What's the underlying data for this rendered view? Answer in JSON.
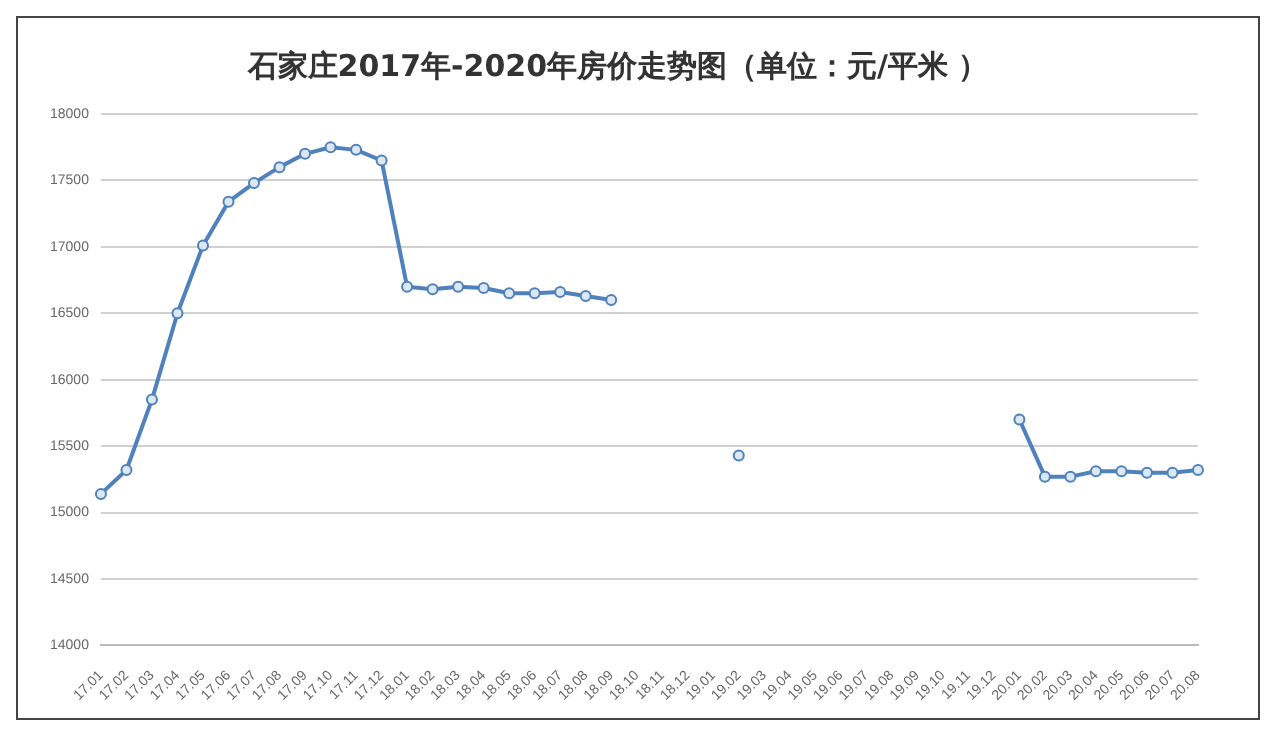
{
  "chart_data": {
    "type": "line",
    "title": "石家庄2017年-2020年房价走势图（单位：元/平米 ）",
    "categories": [
      "17.01",
      "17.02",
      "17.03",
      "17.04",
      "17.05",
      "17.06",
      "17.07",
      "17.08",
      "17.09",
      "17.10",
      "17.11",
      "17.12",
      "18.01",
      "18.02",
      "18.03",
      "18.04",
      "18.05",
      "18.06",
      "18.07",
      "18.08",
      "18.09",
      "18.10",
      "18.11",
      "18.12",
      "19.01",
      "19.02",
      "19.03",
      "19.04",
      "19.05",
      "19.06",
      "19.07",
      "19.08",
      "19.09",
      "19.10",
      "19.11",
      "19.12",
      "20.01",
      "20.02",
      "20.03",
      "20.04",
      "20.05",
      "20.06",
      "20.07",
      "20.08"
    ],
    "series": [
      {
        "color": "#4f81bd",
        "values": [
          15140,
          15320,
          15850,
          16500,
          17010,
          17340,
          17480,
          17600,
          17700,
          17750,
          17730,
          17650,
          16700,
          16680,
          16700,
          16690,
          16650,
          16650,
          16660,
          16630,
          16600,
          null,
          null,
          null,
          null,
          15430,
          null,
          null,
          null,
          null,
          null,
          null,
          null,
          null,
          null,
          null,
          15700,
          15270,
          15270,
          15310,
          15310,
          15300,
          15300,
          15320
        ]
      }
    ],
    "ylim": [
      14000,
      18000
    ],
    "yticks": [
      14000,
      14500,
      15000,
      15500,
      16000,
      16500,
      17000,
      17500,
      18000
    ],
    "grid": "y",
    "marker": "circle",
    "legend": false
  }
}
